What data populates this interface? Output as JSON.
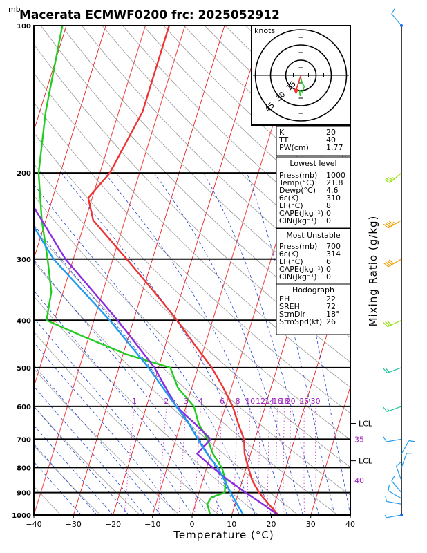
{
  "header": {
    "unit_label": "mb",
    "title": "Macerata ECMWF0200 frc: 2025052912"
  },
  "colors": {
    "temperature": "#ee3333",
    "dewpoint": "#22cc22",
    "parcel": "#8a2be2",
    "wetbulb": "#1e9bf0",
    "isotherm": "#ee2222",
    "dry_adiabat": "#999999",
    "moist_adiabat": "#2244cc",
    "mixing_ratio": "#c040c0",
    "frame": "#000000"
  },
  "chart_data": {
    "type": "line",
    "xlabel": "Temperature (°C)",
    "ylabel": "Mixing Ratio (g/kg)",
    "x_ticks": [
      -40,
      -30,
      -20,
      -10,
      0,
      10,
      20,
      30,
      40
    ],
    "p_ticks": [
      100,
      200,
      300,
      400,
      500,
      600,
      700,
      800,
      900,
      1000
    ],
    "xlim": [
      -40,
      40
    ],
    "plim": [
      100,
      1000
    ],
    "skew": "skew-T log-p",
    "mixing_ratio_labels": [
      "1",
      "2",
      "3",
      "4",
      "6",
      "8",
      "10",
      "12",
      "14",
      "16",
      "18",
      "20",
      "25",
      "30"
    ],
    "theta_e_labels": [
      "35",
      "40"
    ],
    "lcl_labels": [
      "LCL",
      "LCL"
    ],
    "series": [
      {
        "name": "Temperature",
        "points": [
          [
            1000,
            21.8
          ],
          [
            950,
            18.5
          ],
          [
            900,
            15.2
          ],
          [
            850,
            12.5
          ],
          [
            800,
            10.5
          ],
          [
            750,
            8.5
          ],
          [
            700,
            7.2
          ],
          [
            650,
            4.5
          ],
          [
            600,
            1.8
          ],
          [
            550,
            -2.0
          ],
          [
            500,
            -6.5
          ],
          [
            450,
            -12.5
          ],
          [
            400,
            -19.0
          ],
          [
            350,
            -27.0
          ],
          [
            300,
            -36.5
          ],
          [
            250,
            -48.0
          ],
          [
            225,
            -51.0
          ],
          [
            200,
            -47.5
          ],
          [
            150,
            -44.0
          ],
          [
            100,
            -44.0
          ]
        ]
      },
      {
        "name": "Dewpoint",
        "points": [
          [
            1000,
            4.6
          ],
          [
            950,
            3.0
          ],
          [
            920,
            3.5
          ],
          [
            900,
            6.5
          ],
          [
            850,
            5.8
          ],
          [
            800,
            3.8
          ],
          [
            750,
            0.5
          ],
          [
            700,
            -2.0
          ],
          [
            650,
            -5.5
          ],
          [
            600,
            -8.0
          ],
          [
            550,
            -13.5
          ],
          [
            500,
            -17.0
          ],
          [
            470,
            -29.0
          ],
          [
            430,
            -42.0
          ],
          [
            400,
            -52.0
          ],
          [
            350,
            -53.0
          ],
          [
            300,
            -56.5
          ],
          [
            250,
            -61.0
          ],
          [
            200,
            -65.5
          ],
          [
            150,
            -68.5
          ],
          [
            100,
            -71.0
          ]
        ]
      },
      {
        "name": "Parcel",
        "points": [
          [
            1000,
            21.8
          ],
          [
            950,
            17.0
          ],
          [
            900,
            11.8
          ],
          [
            850,
            6.5
          ],
          [
            800,
            1.5
          ],
          [
            750,
            -3.5
          ],
          [
            700,
            -1.2
          ],
          [
            650,
            -6.5
          ],
          [
            600,
            -12.5
          ],
          [
            500,
            -21.0
          ],
          [
            400,
            -34.0
          ],
          [
            300,
            -52.0
          ],
          [
            200,
            -72.0
          ],
          [
            130,
            -84.0
          ]
        ]
      },
      {
        "name": "Wet bulb",
        "points": [
          [
            1000,
            13.0
          ],
          [
            950,
            10.5
          ],
          [
            900,
            8.0
          ],
          [
            850,
            5.5
          ],
          [
            800,
            2.8
          ],
          [
            750,
            -1.0
          ],
          [
            700,
            -4.5
          ],
          [
            650,
            -8.0
          ],
          [
            600,
            -12.5
          ],
          [
            500,
            -22.5
          ],
          [
            400,
            -36.0
          ],
          [
            300,
            -55.0
          ],
          [
            200,
            -75.0
          ],
          [
            130,
            -87.0
          ]
        ]
      }
    ],
    "hodograph": {
      "title": "knots",
      "ring_labels": [
        "15",
        "30",
        "45"
      ],
      "storm_motion_deg": 18,
      "storm_speed_kt": 26
    },
    "wind_profile": [
      {
        "p": 1000,
        "dir": 260,
        "spd": 5
      },
      {
        "p": 950,
        "dir": 280,
        "spd": 10
      },
      {
        "p": 925,
        "dir": 300,
        "spd": 10
      },
      {
        "p": 900,
        "dir": 320,
        "spd": 10
      },
      {
        "p": 850,
        "dir": 340,
        "spd": 10
      },
      {
        "p": 800,
        "dir": 20,
        "spd": 10
      },
      {
        "p": 750,
        "dir": 30,
        "spd": 10
      },
      {
        "p": 700,
        "dir": 260,
        "spd": 10
      },
      {
        "p": 600,
        "dir": 250,
        "spd": 15
      },
      {
        "p": 500,
        "dir": 250,
        "spd": 20
      },
      {
        "p": 400,
        "dir": 245,
        "spd": 30
      },
      {
        "p": 300,
        "dir": 240,
        "spd": 40
      },
      {
        "p": 250,
        "dir": 240,
        "spd": 45
      },
      {
        "p": 200,
        "dir": 230,
        "spd": 35
      },
      {
        "p": 100,
        "dir": 320,
        "spd": 10
      }
    ]
  },
  "indices": {
    "top": [
      {
        "label": "K",
        "value": "20"
      },
      {
        "label": "TT",
        "value": "40"
      },
      {
        "label": "PW(cm)",
        "value": "1.77"
      }
    ],
    "lowest_title": "Lowest level",
    "lowest": [
      {
        "label": "Press(mb)",
        "value": "1000"
      },
      {
        "label": "Temp(°C)",
        "value": "21.8"
      },
      {
        "label": "Dewp(°C)",
        "value": "4.6"
      },
      {
        "label": "θε(K)",
        "value": "310"
      },
      {
        "label": "LI (°C)",
        "value": "8"
      },
      {
        "label": "CAPE(Jkg⁻¹)",
        "value": "0"
      },
      {
        "label": "CIN(Jkg⁻¹)",
        "value": "0"
      }
    ],
    "unstable_title": "Most Unstable",
    "unstable": [
      {
        "label": "Press(mb)",
        "value": "700"
      },
      {
        "label": "θε(K)",
        "value": "314"
      },
      {
        "label": "LI (°C)",
        "value": "6"
      },
      {
        "label": "CAPE(Jkg⁻¹)",
        "value": "0"
      },
      {
        "label": "CIN(Jkg⁻¹)",
        "value": "0"
      }
    ],
    "hodo_title": "Hodograph",
    "hodo": [
      {
        "label": "EH",
        "value": "22"
      },
      {
        "label": "SREH",
        "value": "72"
      },
      {
        "label": "StmDir",
        "value": "18°"
      },
      {
        "label": "StmSpd(kt)",
        "value": "26"
      }
    ]
  }
}
